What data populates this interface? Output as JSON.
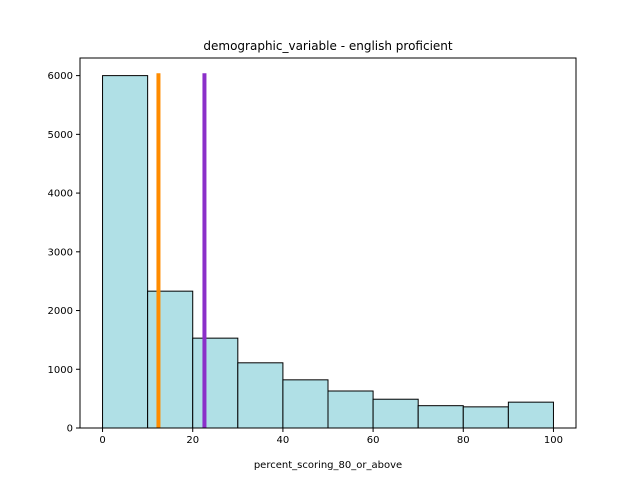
{
  "chart_data": {
    "type": "bar",
    "title": "demographic_variable - english proficient",
    "xlabel": "percent_scoring_80_or_above",
    "ylabel": "",
    "xlim": [
      -5,
      105
    ],
    "ylim": [
      0,
      6300
    ],
    "xticks": [
      0,
      20,
      40,
      60,
      80,
      100
    ],
    "yticks": [
      0,
      1000,
      2000,
      3000,
      4000,
      5000,
      6000
    ],
    "bins": [
      {
        "x0": 0,
        "x1": 10,
        "count": 6000
      },
      {
        "x0": 10,
        "x1": 20,
        "count": 2330
      },
      {
        "x0": 20,
        "x1": 30,
        "count": 1530
      },
      {
        "x0": 30,
        "x1": 40,
        "count": 1110
      },
      {
        "x0": 40,
        "x1": 50,
        "count": 820
      },
      {
        "x0": 50,
        "x1": 60,
        "count": 630
      },
      {
        "x0": 60,
        "x1": 70,
        "count": 490
      },
      {
        "x0": 70,
        "x1": 80,
        "count": 380
      },
      {
        "x0": 80,
        "x1": 90,
        "count": 360
      },
      {
        "x0": 90,
        "x1": 100,
        "count": 440
      }
    ],
    "vlines": [
      {
        "x": 12.4,
        "color": "#ff8c00"
      },
      {
        "x": 22.6,
        "color": "#8b2fc9"
      }
    ],
    "bar_color": "#b0e0e6",
    "edge_color": "#000000",
    "grid": false,
    "legend": "none"
  }
}
